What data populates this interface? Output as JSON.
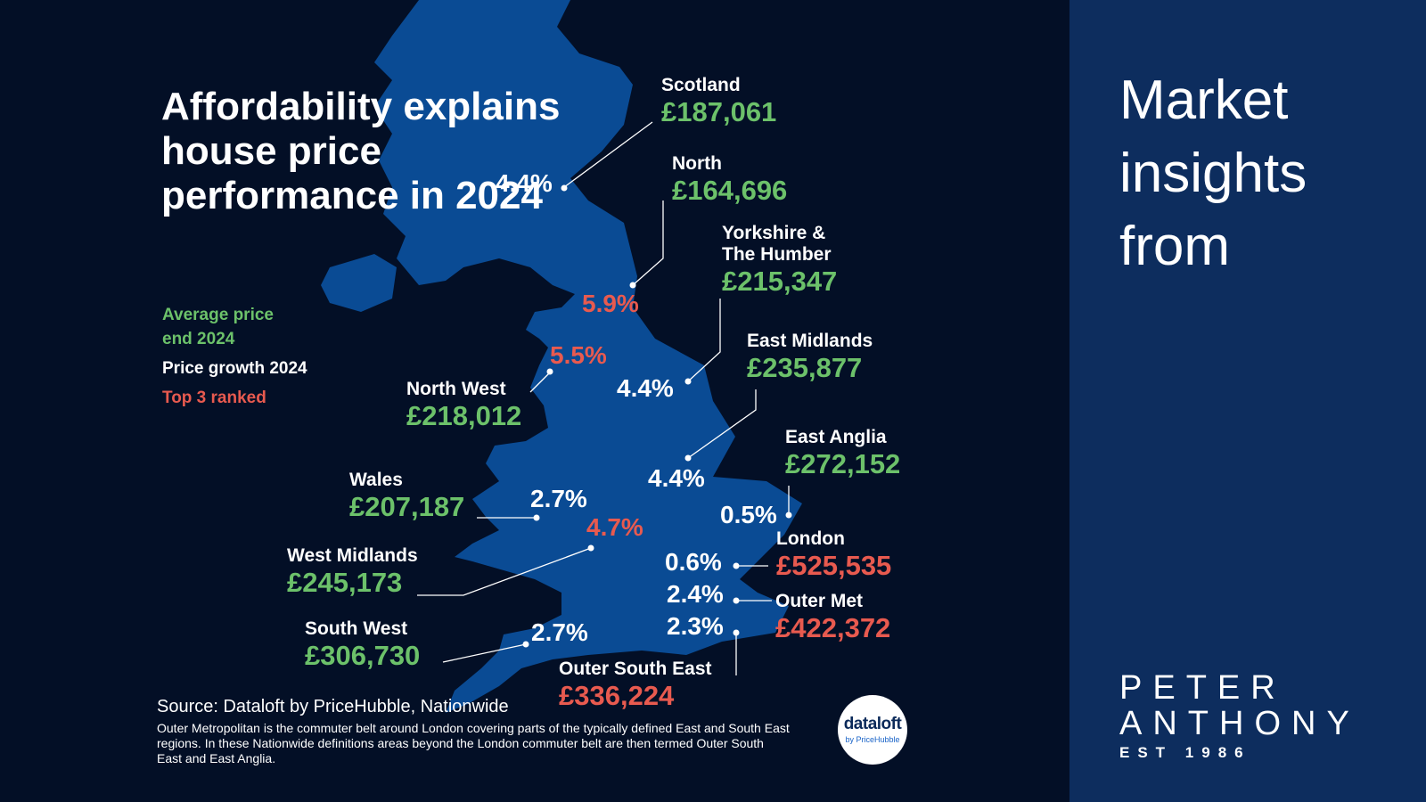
{
  "title": "Affordability explains house price performance in 2024",
  "legend": {
    "average": "Average price end 2024",
    "growth": "Price growth 2024",
    "top3": "Top 3 ranked"
  },
  "colors": {
    "background": "#030f26",
    "map": "#0a4b94",
    "price_green": "#6cc16a",
    "top3_red": "#e85a4f",
    "side_panel": "#0d2d5e"
  },
  "regions": [
    {
      "name": "Scotland",
      "price": "£187,061",
      "growth": "4.4%",
      "top3": false
    },
    {
      "name": "North",
      "price": "£164,696",
      "growth": "5.9%",
      "top3": true
    },
    {
      "name": "Yorkshire & The Humber",
      "price": "£215,347",
      "growth": "4.4%",
      "top3": false
    },
    {
      "name": "East Midlands",
      "price": "£235,877",
      "growth": "4.4%",
      "top3": false
    },
    {
      "name": "North West",
      "price": "£218,012",
      "growth": "5.5%",
      "top3": true
    },
    {
      "name": "East Anglia",
      "price": "£272,152",
      "growth": "0.5%",
      "top3": false
    },
    {
      "name": "Wales",
      "price": "£207,187",
      "growth": "2.7%",
      "top3": false
    },
    {
      "name": "West Midlands",
      "price": "£245,173",
      "growth": "4.7%",
      "top3": true
    },
    {
      "name": "London",
      "price": "£525,535",
      "growth": "0.6%",
      "top3": false
    },
    {
      "name": "Outer Met",
      "price": "£422,372",
      "growth": "2.4%",
      "top3": false
    },
    {
      "name": "South West",
      "price": "£306,730",
      "growth": "2.7%",
      "top3": false
    },
    {
      "name": "Outer South East",
      "price": "£336,224",
      "growth": "2.3%",
      "top3": false
    }
  ],
  "source": "Source: Dataloft by PriceHubble, Nationwide",
  "note": "Outer Metropolitan is the commuter belt around London covering parts of the typically defined East and South East regions. In these Nationwide definitions areas beyond the London commuter belt are then termed Outer South East and East Anglia.",
  "badge": {
    "name": "dataloft",
    "sub": "by PriceHubble"
  },
  "side": {
    "title": "Market insights from",
    "brand_line1": "PETER",
    "brand_line2": "ANTHONY",
    "brand_line3": "EST 1986"
  }
}
